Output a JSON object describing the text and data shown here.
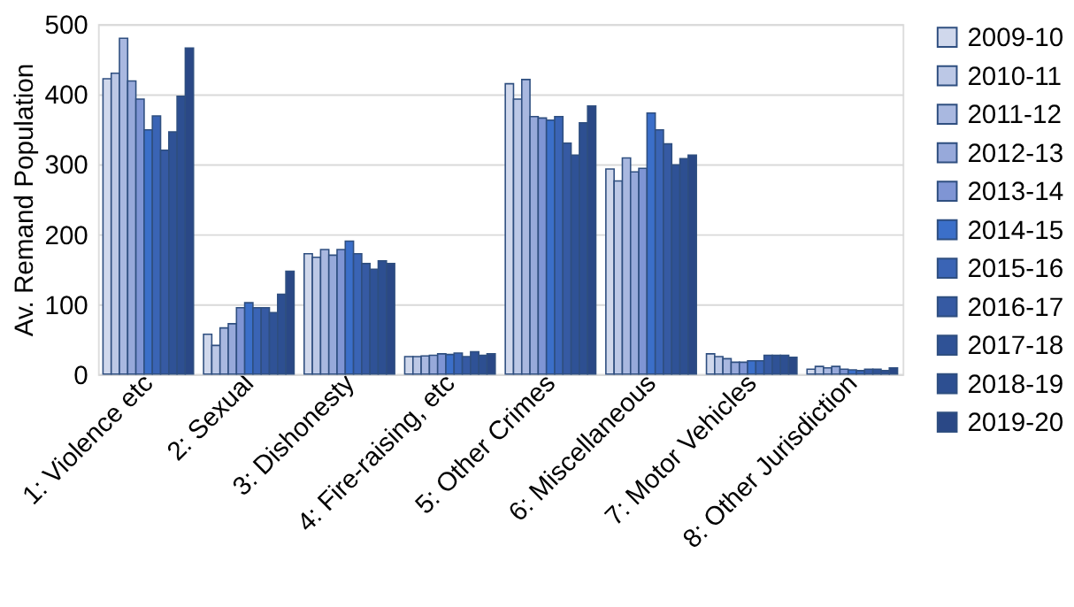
{
  "chart_data": {
    "type": "bar",
    "ylabel": "Av. Remand Population",
    "categories": [
      "1: Violence etc",
      "2: Sexual",
      "3: Dishonesty",
      "4: Fire-raising, etc",
      "5: Other Crimes",
      "6: Miscellaneous",
      "7: Motor Vehicles",
      "8: Other Jurisdiction"
    ],
    "series": [
      {
        "name": "2009-10",
        "color": "#d0d8ec",
        "values": [
          422,
          57,
          172,
          25,
          415,
          293,
          29,
          7
        ]
      },
      {
        "name": "2010-11",
        "color": "#bcc8e6",
        "values": [
          430,
          41,
          167,
          25,
          393,
          276,
          25,
          11
        ]
      },
      {
        "name": "2011-12",
        "color": "#a9b8e0",
        "values": [
          480,
          66,
          178,
          26,
          421,
          309,
          22,
          9
        ]
      },
      {
        "name": "2012-13",
        "color": "#97a9da",
        "values": [
          419,
          72,
          170,
          27,
          368,
          289,
          17,
          11
        ]
      },
      {
        "name": "2013-14",
        "color": "#7f95d4",
        "values": [
          393,
          95,
          178,
          29,
          366,
          294,
          17,
          7
        ]
      },
      {
        "name": "2014-15",
        "color": "#3b6fc9",
        "values": [
          349,
          102,
          190,
          28,
          363,
          373,
          19,
          6
        ]
      },
      {
        "name": "2015-16",
        "color": "#3a64b5",
        "values": [
          369,
          95,
          172,
          30,
          368,
          349,
          19,
          5
        ]
      },
      {
        "name": "2016-17",
        "color": "#365aa3",
        "values": [
          320,
          95,
          158,
          25,
          330,
          329,
          27,
          7
        ]
      },
      {
        "name": "2017-18",
        "color": "#2f5296",
        "values": [
          346,
          88,
          150,
          32,
          313,
          299,
          27,
          7
        ]
      },
      {
        "name": "2018-19",
        "color": "#2d4f91",
        "values": [
          397,
          114,
          162,
          27,
          359,
          308,
          27,
          5
        ]
      },
      {
        "name": "2019-20",
        "color": "#2a4886",
        "values": [
          466,
          147,
          158,
          29,
          383,
          313,
          24,
          9
        ]
      }
    ],
    "ylim": [
      0,
      500
    ],
    "yticks": [
      0,
      100,
      200,
      300,
      400,
      500
    ],
    "grid": "y",
    "legend": "right"
  }
}
